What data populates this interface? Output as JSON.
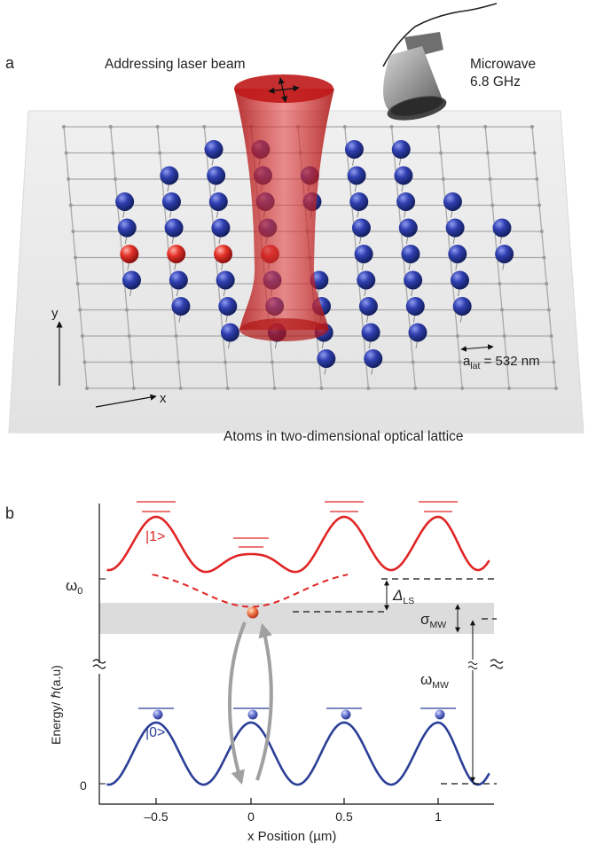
{
  "panel_a": {
    "label": "a",
    "laser_label": "Addressing laser beam",
    "microwave_label_line1": "Microwave",
    "microwave_label_line2": "6.8 GHz",
    "lattice_label": "Atoms in two-dimensional optical lattice",
    "axis_y": "y",
    "axis_x": "x",
    "lattice_const_sym": "a",
    "lattice_const_sub": "lat",
    "lattice_const_val": " = 532 nm",
    "colors": {
      "atom_blue": "#2a3a9c",
      "atom_red": "#e32b2b",
      "beam": "#c41a1a",
      "lattice": "#a9a9a9",
      "plate": "#e6e6e6"
    }
  },
  "panel_b": {
    "label": "b",
    "state_1": "|1>",
    "state_0": "|0>",
    "omega0": "ω",
    "omega0_sub": "0",
    "delta_sym": "Δ",
    "delta_sub": "LS",
    "sigma_sym": "σ",
    "sigma_sub": "MW",
    "omega_mw": "ω",
    "omega_mw_sub": "MW",
    "ylabel": "Energy/ ℏ(a.u)",
    "ytick_zero": "0",
    "xlabel": "x Position (µm)",
    "xticks": [
      {
        "value": -0.5,
        "label": "–0.5"
      },
      {
        "value": 0,
        "label": "0"
      },
      {
        "value": 0.5,
        "label": "0.5"
      },
      {
        "value": 1,
        "label": "1"
      }
    ],
    "colors": {
      "upper": "#e02525",
      "lower": "#2b3f97",
      "arrow": "#a0a0a0",
      "band": "#dcdcdc"
    }
  },
  "chart_data": {
    "type": "line",
    "title": "",
    "xlabel": "x Position (µm)",
    "ylabel": "Energy/ ℏ(a.u)",
    "xlim": [
      -0.8,
      1.35
    ],
    "xticks": [
      -0.5,
      0,
      0.5,
      1
    ],
    "yticks_labeled": [
      "0",
      "ω0"
    ],
    "series": [
      {
        "name": "|1>",
        "values_note_minima_x": [
          -0.5,
          0,
          0.5,
          1
        ]
      },
      {
        "name": "|0>",
        "values_note_minima_x": [
          -0.5,
          0,
          0.5,
          1
        ]
      }
    ]
  }
}
